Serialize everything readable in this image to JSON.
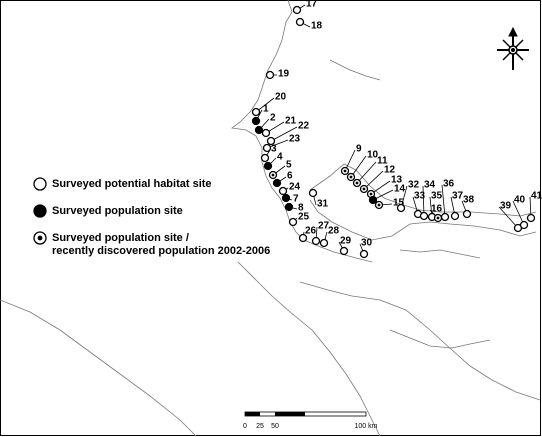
{
  "legend": [
    {
      "type": "open",
      "lines": [
        "Surveyed potential habitat site"
      ]
    },
    {
      "type": "filled",
      "lines": [
        "Surveyed population site"
      ]
    },
    {
      "type": "dotted",
      "lines": [
        "Surveyed population site /",
        "recently discovered population 2002-2006"
      ]
    }
  ],
  "sites": [
    {
      "label": "17",
      "type": "open"
    },
    {
      "label": "18",
      "type": "open"
    },
    {
      "label": "19",
      "type": "open"
    },
    {
      "label": "20",
      "type": "open"
    },
    {
      "label": "1",
      "type": "filled"
    },
    {
      "label": "2",
      "type": "filled"
    },
    {
      "label": "21",
      "type": "open"
    },
    {
      "label": "22",
      "type": "open"
    },
    {
      "label": "23",
      "type": "open"
    },
    {
      "label": "3",
      "type": "open"
    },
    {
      "label": "4",
      "type": "filled"
    },
    {
      "label": "5",
      "type": "dotted"
    },
    {
      "label": "6",
      "type": "filled"
    },
    {
      "label": "24",
      "type": "open"
    },
    {
      "label": "7",
      "type": "filled"
    },
    {
      "label": "8",
      "type": "filled"
    },
    {
      "label": "25",
      "type": "open"
    },
    {
      "label": "26",
      "type": "open"
    },
    {
      "label": "27",
      "type": "open"
    },
    {
      "label": "28",
      "type": "open"
    },
    {
      "label": "29",
      "type": "open"
    },
    {
      "label": "30",
      "type": "open"
    },
    {
      "label": "31",
      "type": "open"
    },
    {
      "label": "9",
      "type": "dotted"
    },
    {
      "label": "10",
      "type": "dotted"
    },
    {
      "label": "11",
      "type": "dotted"
    },
    {
      "label": "12",
      "type": "dotted"
    },
    {
      "label": "13",
      "type": "dotted"
    },
    {
      "label": "14",
      "type": "filled"
    },
    {
      "label": "15",
      "type": "dotted"
    },
    {
      "label": "32",
      "type": "open"
    },
    {
      "label": "33",
      "type": "open"
    },
    {
      "label": "34",
      "type": "open"
    },
    {
      "label": "35",
      "type": "open"
    },
    {
      "label": "36",
      "type": "open"
    },
    {
      "label": "16",
      "type": "dotted"
    },
    {
      "label": "37",
      "type": "open"
    },
    {
      "label": "38",
      "type": "open"
    },
    {
      "label": "39",
      "type": "open"
    },
    {
      "label": "40",
      "type": "open"
    },
    {
      "label": "41",
      "type": "open"
    }
  ],
  "scale_bar": {
    "labels": [
      "0",
      "25",
      "50",
      "100 km"
    ]
  }
}
